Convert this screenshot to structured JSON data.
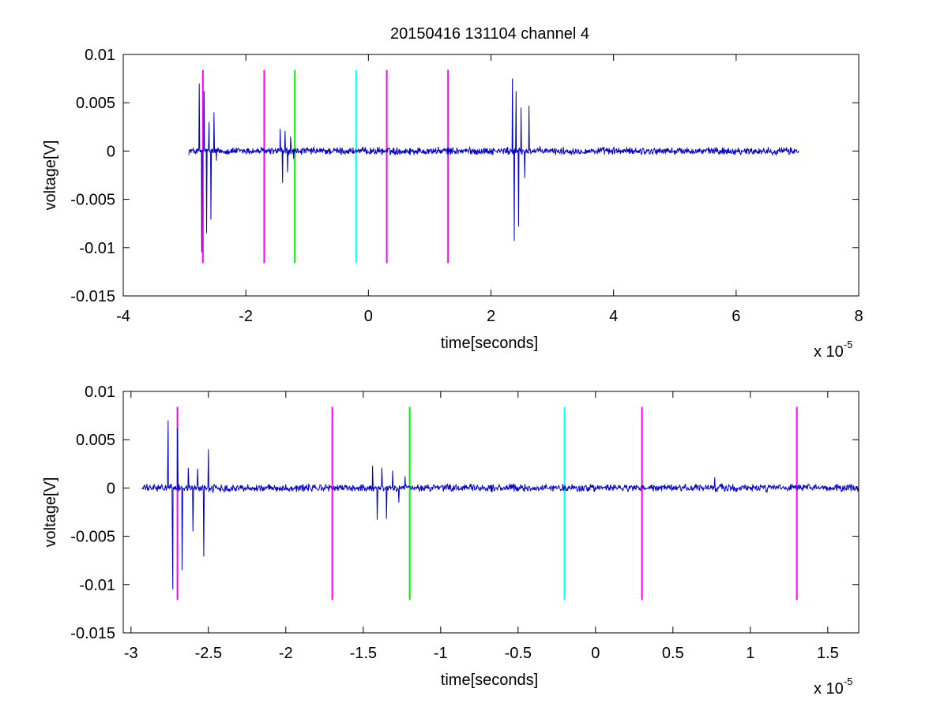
{
  "figure": {
    "title": "20150416 131104 channel 4"
  },
  "chart_data": [
    {
      "type": "line",
      "title": "20150416 131104 channel 4",
      "xlabel": "time[seconds]",
      "ylabel": "voltage[V]",
      "x_exponent_label": "x 10",
      "x_exponent": "-5",
      "xlim": [
        -4,
        8
      ],
      "ylim": [
        -0.015,
        0.01
      ],
      "xticks": [
        -4,
        -2,
        0,
        2,
        4,
        6,
        8
      ],
      "xtick_labels": [
        "-4",
        "-2",
        "0",
        "2",
        "4",
        "6",
        "8"
      ],
      "yticks": [
        -0.015,
        -0.01,
        -0.005,
        0,
        0.005,
        0.01
      ],
      "ytick_labels": [
        "-0.015",
        "-0.01",
        "-0.005",
        "0",
        "0.005",
        "0.01"
      ],
      "grid": false,
      "signal": {
        "color": "#0000cc",
        "x_range": [
          -2.93,
          7.02
        ],
        "baseline_noise": 0.0003,
        "bursts": [
          {
            "x": [
              -2.76,
              -2.72,
              -2.68,
              -2.64,
              -2.6,
              -2.57,
              -2.52,
              -2.48
            ],
            "y": [
              0.007,
              -0.0105,
              0.0062,
              -0.0085,
              0.003,
              -0.0071,
              0.004,
              -0.001
            ]
          },
          {
            "x": [
              -1.44,
              -1.4,
              -1.36,
              -1.32,
              -1.27,
              -1.22
            ],
            "y": [
              0.0023,
              -0.0033,
              0.0021,
              -0.0022,
              0.0015,
              -0.0008
            ]
          },
          {
            "x": [
              2.35,
              2.38,
              2.41,
              2.45,
              2.49,
              2.55,
              2.62
            ],
            "y": [
              0.0075,
              -0.0093,
              0.0062,
              -0.0078,
              0.0045,
              -0.0028,
              0.0047
            ]
          }
        ]
      },
      "markers": [
        {
          "x": -2.7,
          "color": "#ff00ff"
        },
        {
          "x": -1.7,
          "color": "#ff00ff"
        },
        {
          "x": -1.2,
          "color": "#00ee00"
        },
        {
          "x": -0.2,
          "color": "#00ffff"
        },
        {
          "x": 0.3,
          "color": "#ff00ff"
        },
        {
          "x": 1.3,
          "color": "#ff00ff"
        }
      ],
      "marker_y_range": [
        -0.0116,
        0.0084
      ]
    },
    {
      "type": "line",
      "title": "",
      "xlabel": "time[seconds]",
      "ylabel": "voltage[V]",
      "x_exponent_label": "x 10",
      "x_exponent": "-5",
      "xlim": [
        -3.05,
        1.7
      ],
      "ylim": [
        -0.015,
        0.01
      ],
      "xticks": [
        -3,
        -2.5,
        -2,
        -1.5,
        -1,
        -0.5,
        0,
        0.5,
        1,
        1.5
      ],
      "xtick_labels": [
        "-3",
        "-2.5",
        "-2",
        "-1.5",
        "-1",
        "-0.5",
        "0",
        "0.5",
        "1",
        "1.5"
      ],
      "yticks": [
        -0.015,
        -0.01,
        -0.005,
        0,
        0.005,
        0.01
      ],
      "ytick_labels": [
        "-0.015",
        "-0.01",
        "-0.005",
        "0",
        "0.005",
        "0.01"
      ],
      "grid": false,
      "signal": {
        "color": "#0000cc",
        "x_range": [
          -2.93,
          1.7
        ],
        "baseline_noise": 0.0003,
        "bursts": [
          {
            "x": [
              -2.76,
              -2.73,
              -2.7,
              -2.67,
              -2.63,
              -2.6,
              -2.57,
              -2.53,
              -2.5,
              -2.47
            ],
            "y": [
              0.007,
              -0.0105,
              0.0062,
              -0.0085,
              0.0021,
              -0.0045,
              0.002,
              -0.0071,
              0.004,
              -0.0005
            ]
          },
          {
            "x": [
              -1.44,
              -1.41,
              -1.38,
              -1.35,
              -1.31,
              -1.27,
              -1.23
            ],
            "y": [
              0.0023,
              -0.0033,
              0.0021,
              -0.0032,
              0.0018,
              -0.0015,
              0.0012
            ]
          },
          {
            "x": [
              0.77
            ],
            "y": [
              0.0011
            ]
          }
        ]
      },
      "markers": [
        {
          "x": -2.7,
          "color": "#ff00ff"
        },
        {
          "x": -1.7,
          "color": "#ff00ff"
        },
        {
          "x": -1.2,
          "color": "#00ee00"
        },
        {
          "x": -0.2,
          "color": "#00ffff"
        },
        {
          "x": 0.3,
          "color": "#ff00ff"
        },
        {
          "x": 1.3,
          "color": "#ff00ff"
        }
      ],
      "marker_y_range": [
        -0.0116,
        0.0084
      ]
    }
  ]
}
